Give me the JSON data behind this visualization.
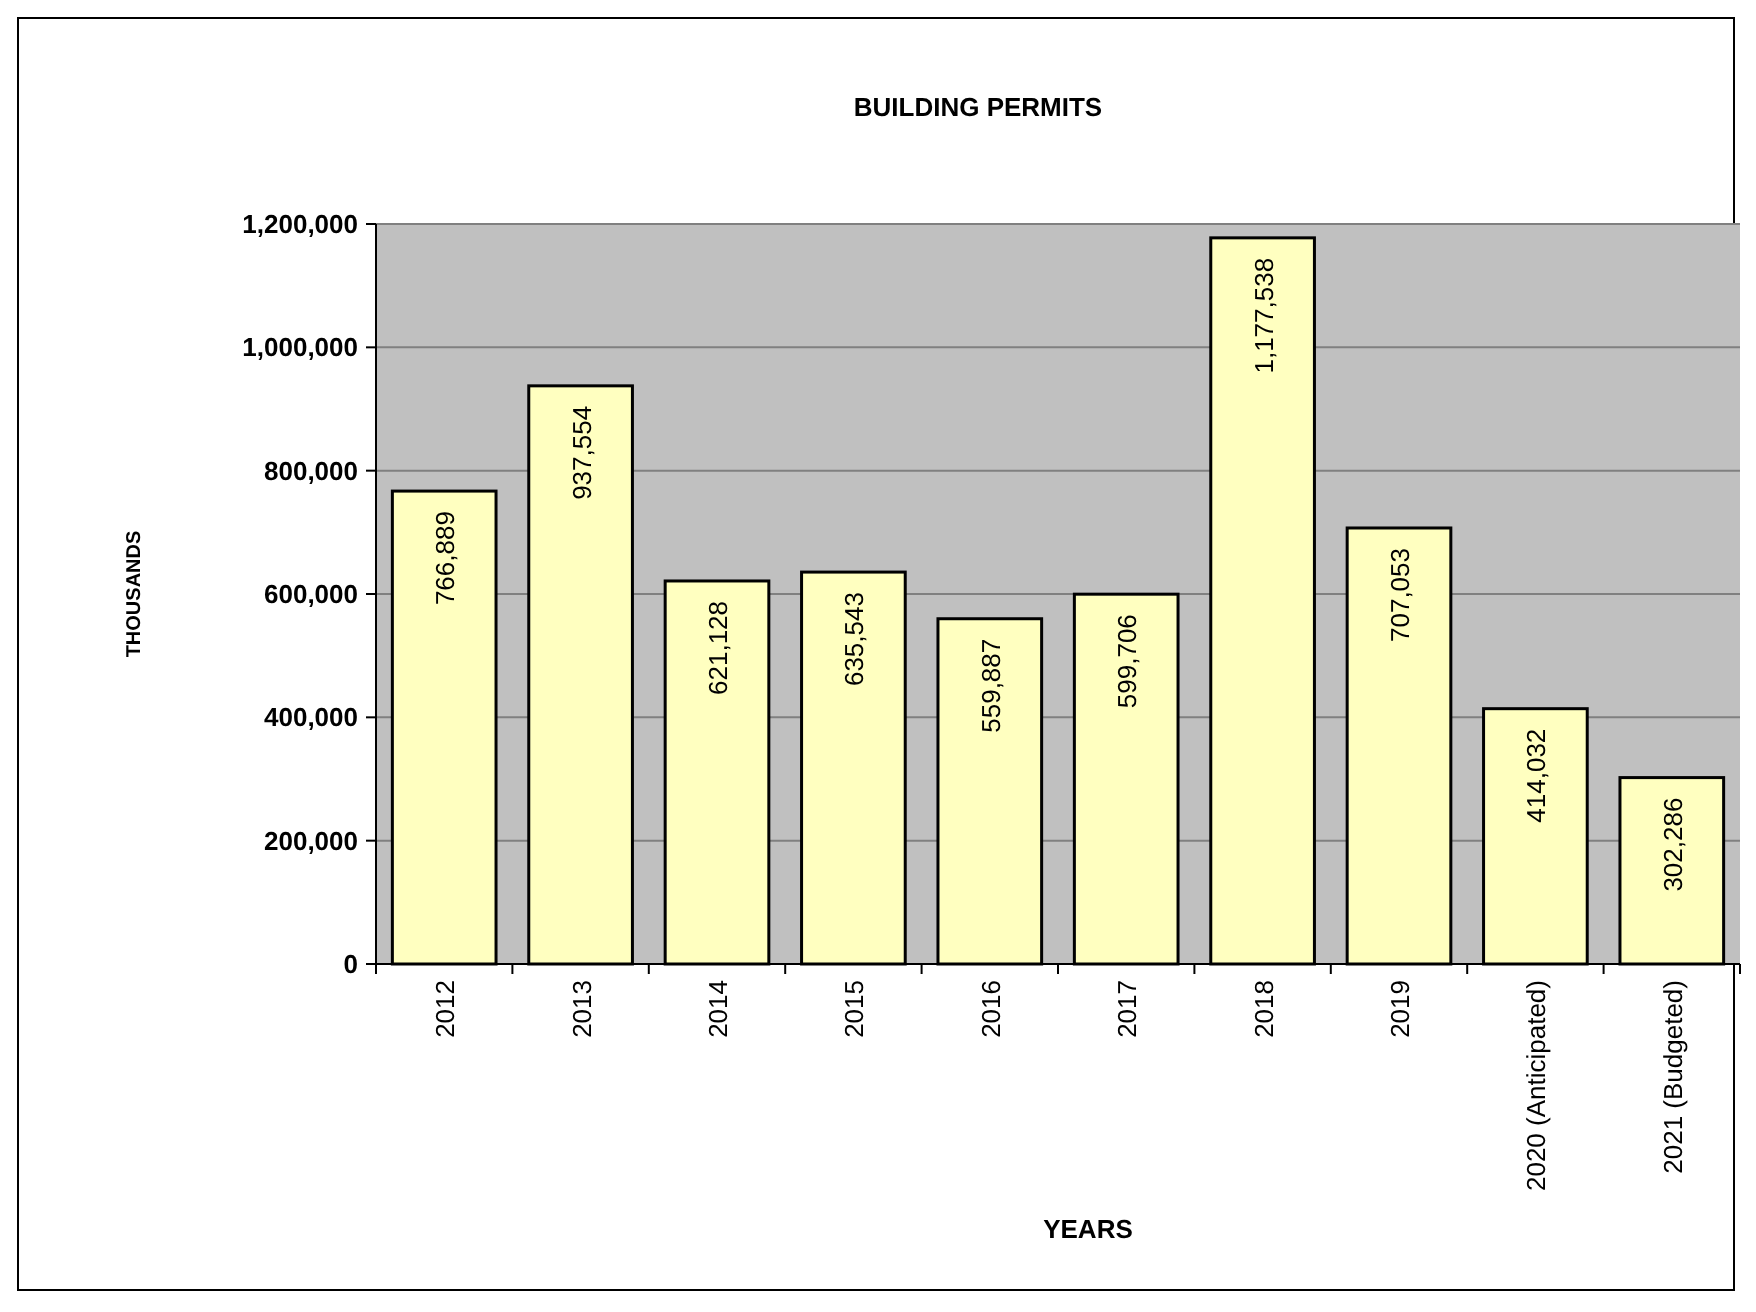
{
  "chart_data": {
    "type": "bar",
    "title": "BUILDING PERMITS",
    "xlabel": "YEARS",
    "ylabel": "THOUSANDS",
    "categories": [
      "2012",
      "2013",
      "2014",
      "2015",
      "2016",
      "2017",
      "2018",
      "2019",
      "2020 (Anticipated)",
      "2021 (Budgeted)"
    ],
    "values": [
      766889,
      937554,
      621128,
      635543,
      559887,
      599706,
      1177538,
      707053,
      414032,
      302286
    ],
    "color": "#ffffc0",
    "ylim": [
      0,
      1200000
    ],
    "yticks": [
      {
        "value": 0,
        "label": "0"
      },
      {
        "value": 200000,
        "label": "200,000"
      },
      {
        "value": 400000,
        "label": "400,000"
      },
      {
        "value": 600000,
        "label": "600,000"
      },
      {
        "value": 800000,
        "label": "800,000"
      },
      {
        "value": 1000000,
        "label": "1,000,000"
      },
      {
        "value": 1200000,
        "label": "1,200,000"
      }
    ],
    "value_labels": [
      "766,889",
      "937,554",
      "621,128",
      "635,543",
      "559,887",
      "599,706",
      "1,177,538",
      "707,053",
      "414,032",
      "302,286"
    ],
    "grid": "y"
  }
}
